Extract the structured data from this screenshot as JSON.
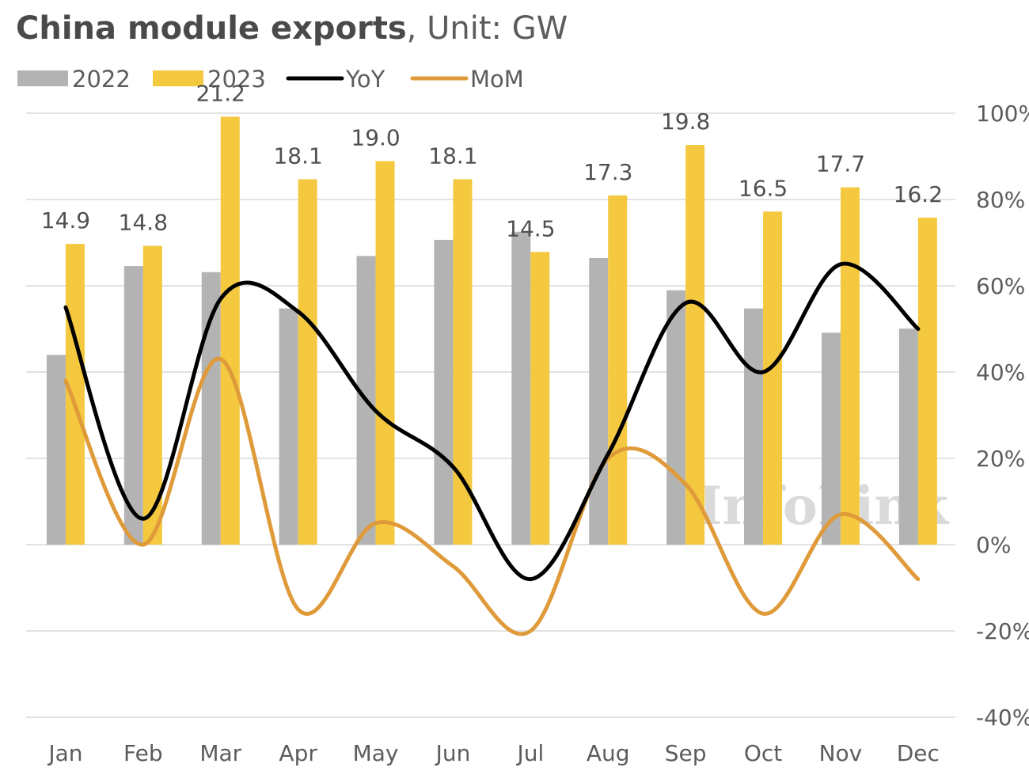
{
  "chart_data": {
    "type": "bar",
    "title": {
      "bold": "China module exports",
      "rest": ", Unit: GW"
    },
    "categories": [
      "Jan",
      "Feb",
      "Mar",
      "Apr",
      "May",
      "Jun",
      "Jul",
      "Aug",
      "Sep",
      "Oct",
      "Nov",
      "Dec"
    ],
    "bar_series": [
      {
        "name": "2022",
        "color": "#b3b3b3",
        "values": [
          9.4,
          13.8,
          13.5,
          11.7,
          14.3,
          15.1,
          15.5,
          14.2,
          12.6,
          11.7,
          10.5,
          10.7
        ]
      },
      {
        "name": "2023",
        "color": "#f4c93f",
        "values": [
          14.9,
          14.8,
          21.2,
          18.1,
          19.0,
          18.1,
          14.5,
          17.3,
          19.8,
          16.5,
          17.7,
          16.2
        ]
      }
    ],
    "data_labels": [
      "14.9",
      "14.8",
      "21.2",
      "18.1",
      "19.0",
      "18.1",
      "14.5",
      "17.3",
      "19.8",
      "16.5",
      "17.7",
      "16.2"
    ],
    "line_series": [
      {
        "name": "YoY",
        "color": "#000000",
        "values": [
          55,
          6,
          57,
          54,
          31,
          18,
          -8,
          21,
          56,
          40,
          65,
          50
        ]
      },
      {
        "name": "MoM",
        "color": "#df9a3a",
        "values": [
          38,
          0,
          43,
          -15,
          5,
          -5,
          -20,
          20,
          14,
          -16,
          7,
          -8
        ]
      }
    ],
    "left_axis": {
      "min": 0,
      "max": 25
    },
    "right_axis": {
      "min": -40,
      "max": 100,
      "ticks": [
        "100%",
        "80%",
        "60%",
        "40%",
        "20%",
        "0%",
        "-20%",
        "-40%"
      ]
    },
    "grid": true,
    "legend": "top-left",
    "watermark": "InfoLink"
  }
}
